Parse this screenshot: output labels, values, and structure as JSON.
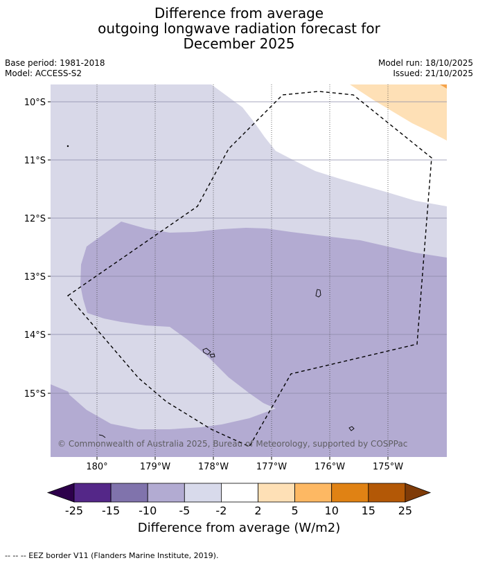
{
  "title": {
    "line1": "Difference from average",
    "line2": "outgoing longwave radiation forecast for",
    "line3": "December 2025"
  },
  "meta": {
    "base_period": "Base period: 1981-2018",
    "model": "Model: ACCESS-S2",
    "model_run": "Model run: 18/10/2025",
    "issued": "Issued: 21/10/2025"
  },
  "map": {
    "lat_labels": [
      "10°S",
      "11°S",
      "12°S",
      "13°S",
      "14°S",
      "15°S"
    ],
    "lon_labels": [
      "180°",
      "179°W",
      "178°W",
      "177°W",
      "176°W",
      "175°W"
    ],
    "copyright": "© Commonwealth of Australia 2025, Bureau of Meteorology, supported by COSPPac",
    "colors": {
      "light_purple": "#d8d8e8",
      "mid_purple": "#b3abd2",
      "light_orange": "#fee0b6",
      "white": "#ffffff"
    }
  },
  "colorbar": {
    "ticks": [
      "-25",
      "-15",
      "-10",
      "-5",
      "-2",
      "2",
      "5",
      "10",
      "15",
      "25"
    ],
    "colors": [
      "#2d004b",
      "#542788",
      "#8073ac",
      "#b2abd2",
      "#d8daeb",
      "#ffffff",
      "#fee0b6",
      "#fdb863",
      "#e08214",
      "#b35806",
      "#7f3b08"
    ],
    "label": "Difference from average (W/m2)"
  },
  "footer": "--  --  -- EEZ border V11 (Flanders Marine Institute, 2019)."
}
